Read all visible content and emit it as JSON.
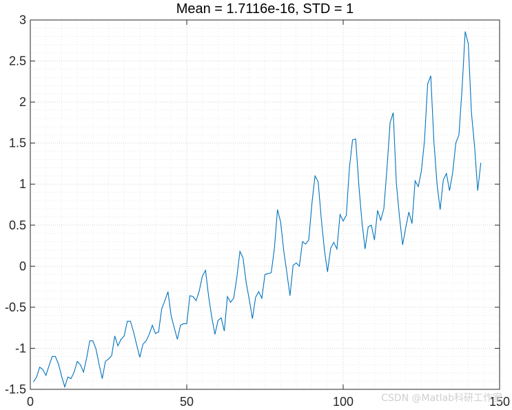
{
  "chart_data": {
    "type": "line",
    "title": "Mean = 1.7116e-16, STD = 1",
    "xlabel": "",
    "ylabel": "",
    "xlim": [
      0,
      150
    ],
    "ylim": [
      -1.5,
      3
    ],
    "xticks": [
      0,
      50,
      100,
      150
    ],
    "xtick_labels": [
      "0",
      "50",
      "100",
      "150"
    ],
    "yticks": [
      -1.5,
      -1,
      -0.5,
      0,
      0.5,
      1,
      1.5,
      2,
      2.5,
      3
    ],
    "ytick_labels": [
      "-1.5",
      "-1",
      "-0.5",
      "0",
      "0.5",
      "1",
      "1.5",
      "2",
      "2.5",
      "3"
    ],
    "grid": "major and minor, dotted",
    "box": true,
    "series": [
      {
        "color": "#0072BD",
        "x": [
          1,
          2,
          3,
          4,
          5,
          6,
          7,
          8,
          9,
          10,
          11,
          12,
          13,
          14,
          15,
          16,
          17,
          18,
          19,
          20,
          21,
          22,
          23,
          24,
          25,
          26,
          27,
          28,
          29,
          30,
          31,
          32,
          33,
          34,
          35,
          36,
          37,
          38,
          39,
          40,
          41,
          42,
          43,
          44,
          45,
          46,
          47,
          48,
          49,
          50,
          51,
          52,
          53,
          54,
          55,
          56,
          57,
          58,
          59,
          60,
          61,
          62,
          63,
          64,
          65,
          66,
          67,
          68,
          69,
          70,
          71,
          72,
          73,
          74,
          75,
          76,
          77,
          78,
          79,
          80,
          81,
          82,
          83,
          84,
          85,
          86,
          87,
          88,
          89,
          90,
          91,
          92,
          93,
          94,
          95,
          96,
          97,
          98,
          99,
          100,
          101,
          102,
          103,
          104,
          105,
          106,
          107,
          108,
          109,
          110,
          111,
          112,
          113,
          114,
          115,
          116,
          117,
          118,
          119,
          120,
          121,
          122,
          123,
          124,
          125,
          126,
          127,
          128,
          129,
          130,
          131,
          132,
          133,
          134,
          135,
          136,
          137,
          138,
          139,
          140,
          141,
          142,
          143,
          144
        ],
        "y": [
          -1.41,
          -1.35,
          -1.23,
          -1.26,
          -1.33,
          -1.21,
          -1.1,
          -1.1,
          -1.19,
          -1.34,
          -1.47,
          -1.35,
          -1.37,
          -1.29,
          -1.16,
          -1.2,
          -1.29,
          -1.12,
          -0.91,
          -0.91,
          -1.01,
          -1.2,
          -1.37,
          -1.16,
          -1.13,
          -1.09,
          -0.85,
          -0.97,
          -0.89,
          -0.85,
          -0.67,
          -0.67,
          -0.8,
          -0.96,
          -1.11,
          -0.95,
          -0.91,
          -0.83,
          -0.72,
          -0.82,
          -0.8,
          -0.52,
          -0.42,
          -0.31,
          -0.6,
          -0.75,
          -0.89,
          -0.72,
          -0.7,
          -0.7,
          -0.36,
          -0.37,
          -0.42,
          -0.3,
          -0.12,
          -0.05,
          -0.37,
          -0.62,
          -0.83,
          -0.66,
          -0.63,
          -0.79,
          -0.37,
          -0.44,
          -0.39,
          -0.14,
          0.18,
          0.1,
          -0.2,
          -0.41,
          -0.64,
          -0.38,
          -0.31,
          -0.39,
          -0.1,
          -0.09,
          -0.08,
          0.21,
          0.69,
          0.54,
          0.19,
          -0.08,
          -0.36,
          0.01,
          0.04,
          0.0,
          0.3,
          0.27,
          0.32,
          0.76,
          1.1,
          1.03,
          0.58,
          0.2,
          -0.07,
          0.22,
          0.29,
          0.21,
          0.63,
          0.55,
          0.62,
          1.2,
          1.54,
          1.55,
          0.99,
          0.54,
          0.21,
          0.48,
          0.5,
          0.32,
          0.68,
          0.56,
          0.7,
          1.19,
          1.75,
          1.87,
          1.01,
          0.6,
          0.26,
          0.47,
          0.66,
          0.52,
          1.04,
          0.97,
          1.16,
          1.53,
          2.22,
          2.32,
          1.52,
          1.0,
          0.69,
          1.05,
          1.13,
          0.92,
          1.14,
          1.5,
          1.6,
          2.16,
          2.86,
          2.71,
          1.87,
          1.46,
          0.92,
          1.26
        ]
      }
    ]
  },
  "watermark": "CSDN @Matlab科研工作室"
}
